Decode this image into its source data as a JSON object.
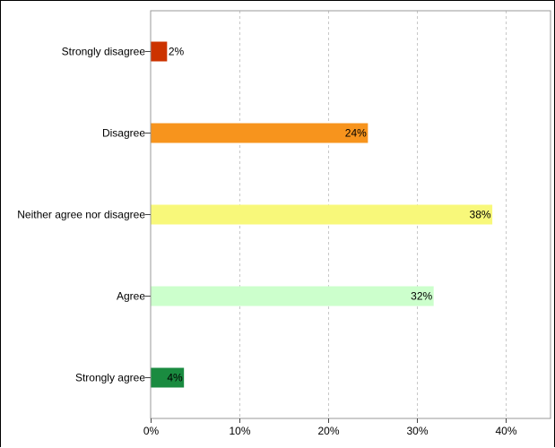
{
  "chart_data": {
    "type": "bar",
    "orientation": "horizontal",
    "title": "",
    "xlabel": "",
    "ylabel": "",
    "categories": [
      "Strongly disagree",
      "Disagree",
      "Neither agree nor disagree",
      "Agree",
      "Strongly agree"
    ],
    "values": [
      1.8,
      24.4,
      38.4,
      31.8,
      3.7
    ],
    "value_labels": [
      "2%",
      "24%",
      "38%",
      "32%",
      "4%"
    ],
    "colors": [
      "#cc3300",
      "#f7941d",
      "#f8f87a",
      "#ccffcc",
      "#1a8b40"
    ],
    "xlim": [
      0,
      45
    ],
    "x_ticks": [
      0,
      10,
      20,
      30,
      40
    ],
    "x_tick_labels": [
      "0%",
      "10%",
      "20%",
      "30%",
      "40%"
    ],
    "grid": "vertical dashed",
    "legend": "none"
  }
}
